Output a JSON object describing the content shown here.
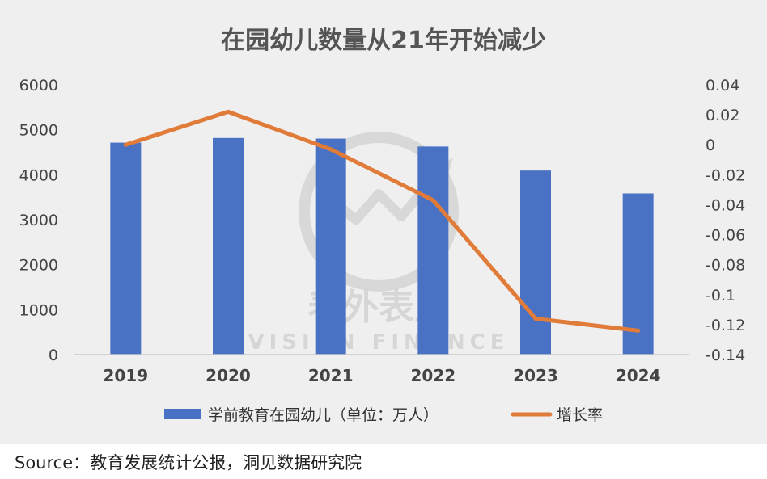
{
  "chart_data": {
    "type": "bar",
    "title": "在园幼儿数量从21年开始减少",
    "categories": [
      "2019",
      "2020",
      "2021",
      "2022",
      "2023",
      "2024"
    ],
    "series": [
      {
        "name": "学前教育在园幼儿（单位：万人）",
        "type": "bar",
        "axis": "left",
        "color": "#4a72c4",
        "values": [
          4714,
          4818,
          4805,
          4628,
          4093,
          3584
        ]
      },
      {
        "name": "增长率",
        "type": "line",
        "axis": "right",
        "color": "#e07b39",
        "values": [
          0.0,
          0.022,
          -0.003,
          -0.037,
          -0.116,
          -0.124
        ]
      }
    ],
    "y_left": {
      "min": 0,
      "max": 6000,
      "ticks": [
        "0",
        "1000",
        "2000",
        "3000",
        "4000",
        "5000",
        "6000"
      ]
    },
    "y_right": {
      "min": -0.14,
      "max": 0.04,
      "ticks": [
        "-0.14",
        "-0.12",
        "-0.1",
        "-0.08",
        "-0.06",
        "-0.04",
        "-0.02",
        "0",
        "0.02",
        "0.04"
      ]
    },
    "grid": false,
    "legend_position": "bottom"
  },
  "watermark": {
    "cn": "表外表里",
    "en": "VISION FINANCE"
  },
  "source": "Source：教育发展统计公报，洞见数据研究院"
}
